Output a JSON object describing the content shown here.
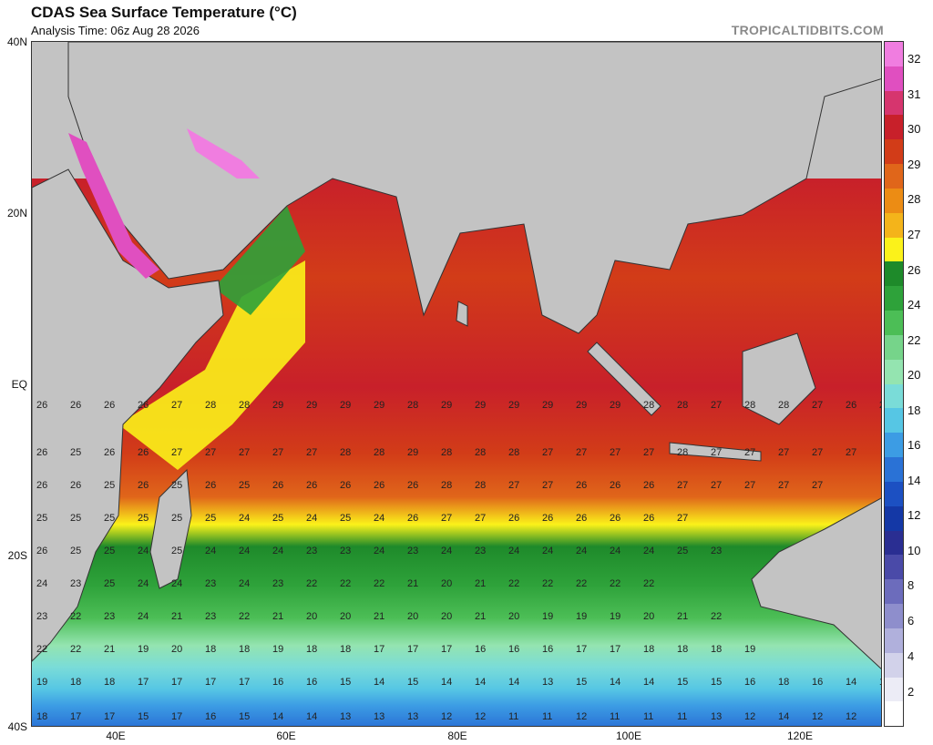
{
  "header": {
    "title": "CDAS Sea Surface Temperature (°C)",
    "subtitle": "Analysis Time: 06z Aug 28 2026",
    "brand": "TROPICALTIDBITS.COM"
  },
  "axes": {
    "lat_labels": [
      "40N",
      "20N",
      "EQ",
      "20S",
      "40S"
    ],
    "lon_labels": [
      "40E",
      "60E",
      "80E",
      "100E",
      "120E"
    ]
  },
  "colorbar": {
    "ticks": [
      "32",
      "31",
      "30",
      "29",
      "28",
      "27",
      "26",
      "24",
      "22",
      "20",
      "18",
      "16",
      "14",
      "12",
      "10",
      "8",
      "6",
      "4",
      "2"
    ],
    "colors": [
      "#f07de0",
      "#e04fc0",
      "#d6356e",
      "#c8202a",
      "#d23c18",
      "#e0661a",
      "#ec8c14",
      "#f4b41a",
      "#fbf21a",
      "#1e8a2a",
      "#2ea23a",
      "#4cbe56",
      "#76d48a",
      "#94e4b0",
      "#7adcd8",
      "#56c6e4",
      "#3c9ce4",
      "#2a72d6",
      "#1c50c2",
      "#1438a6",
      "#2a2e92",
      "#4a4aa8",
      "#6c6cbc",
      "#8e8ecc",
      "#b0b0dc",
      "#d2d2ea",
      "#ececf6",
      "#ffffff"
    ]
  },
  "map": {
    "land_color": "#c3c3c3",
    "sst_labels": [
      [
        0,
        35,
        28,
        29
      ],
      [
        0,
        55,
        28,
        29
      ],
      [
        0,
        80,
        28,
        29
      ],
      [
        1,
        120,
        30
      ],
      [
        1,
        55,
        33
      ],
      [
        2,
        215,
        27
      ],
      [
        3,
        190,
        30
      ]
    ]
  }
}
